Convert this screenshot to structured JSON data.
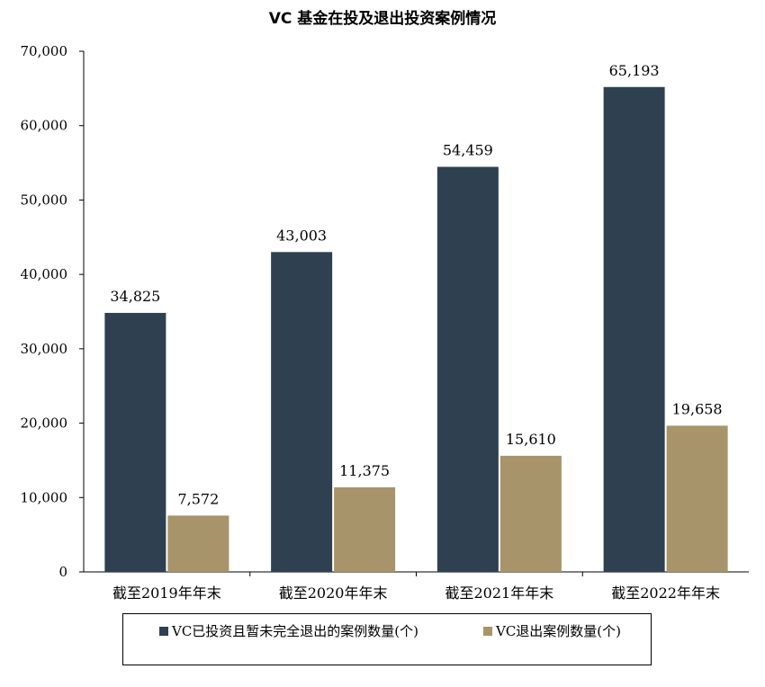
{
  "chart_data": {
    "type": "bar",
    "title": "VC 基金在投及退出投资案例情况",
    "categories": [
      "截至2019年年末",
      "截至2020年年末",
      "截至2021年年末",
      "截至2022年年末"
    ],
    "series": [
      {
        "name": "VC已投资且暂未完全退出的案例数量(个)",
        "values": [
          34825,
          43003,
          54459,
          65193
        ],
        "labels": [
          "34,825",
          "43,003",
          "54,459",
          "65,193"
        ],
        "color": "#2F4050"
      },
      {
        "name": "VC退出案例数量(个)",
        "values": [
          7572,
          11375,
          15610,
          19658
        ],
        "labels": [
          "7,572",
          "11,375",
          "15,610",
          "19,658"
        ],
        "color": "#A8946A"
      }
    ],
    "ylim": [
      0,
      70000
    ],
    "yticks": [
      0,
      10000,
      20000,
      30000,
      40000,
      50000,
      60000,
      70000
    ],
    "ytick_labels": [
      "0",
      "10,000",
      "20,000",
      "30,000",
      "40,000",
      "50,000",
      "60,000",
      "70,000"
    ],
    "grid": false,
    "legend_position": "bottom"
  },
  "legend": {
    "item1_label": "VC已投资且暂未完全退出的案例数量(个)",
    "item2_label": "VC退出案例数量(个)"
  }
}
